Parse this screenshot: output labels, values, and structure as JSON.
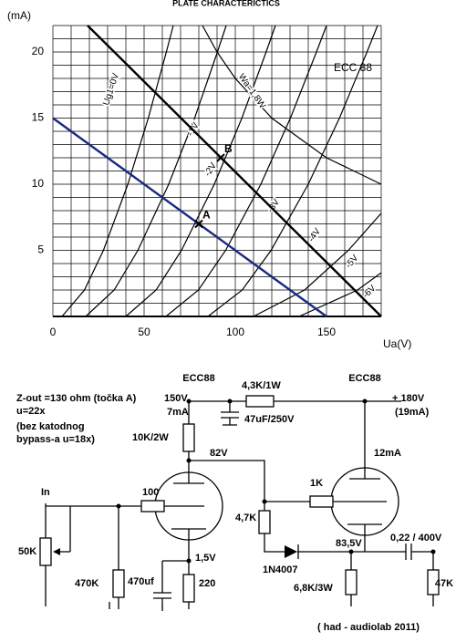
{
  "chart_data": {
    "type": "line",
    "title": "PLATE CHARACTERICTICS",
    "ylabel": "(mA)",
    "xlabel": "Ua(V)",
    "xlim": [
      0,
      180
    ],
    "ylim": [
      0,
      22
    ],
    "xticks": [
      0,
      50,
      100,
      150
    ],
    "yticks": [
      5,
      10,
      15,
      20
    ],
    "xgrid": [
      0,
      10,
      20,
      30,
      40,
      50,
      60,
      70,
      80,
      90,
      100,
      110,
      120,
      130,
      140,
      150,
      160,
      170,
      180
    ],
    "ygrid": [
      0,
      1,
      2,
      3,
      4,
      5,
      6,
      7,
      8,
      9,
      10,
      11,
      12,
      13,
      14,
      15,
      16,
      17,
      18,
      19,
      20,
      21,
      22
    ],
    "grid": true,
    "series": [
      {
        "name": "Ug1=0V",
        "color": "#000000",
        "x": [
          5,
          17.3,
          27.7,
          41.1,
          52.3,
          62.2,
          66
        ],
        "values": [
          0,
          2,
          5,
          10,
          15,
          20,
          22
        ]
      },
      {
        "name": "-1V",
        "color": "#000000",
        "x": [
          18,
          33.6,
          46.6,
          63.5,
          77.7,
          90.2,
          95
        ],
        "values": [
          0,
          2,
          5,
          10,
          15,
          20,
          22
        ]
      },
      {
        "name": "-2V",
        "color": "#000000",
        "x": [
          40,
          56.6,
          70.5,
          88.5,
          103.6,
          116.9,
          122
        ],
        "values": [
          0,
          2,
          5,
          10,
          15,
          20,
          22
        ]
      },
      {
        "name": "-3V",
        "color": "#000000",
        "x": [
          62,
          79.8,
          94.7,
          114,
          130.2,
          144.5,
          150
        ],
        "values": [
          0,
          2,
          5,
          10,
          15,
          20,
          22
        ]
      },
      {
        "name": "-4V",
        "color": "#000000",
        "x": [
          85,
          103.8,
          119.6,
          140,
          157.1,
          172.2,
          178
        ],
        "values": [
          0,
          2,
          5,
          10,
          15,
          20,
          22
        ]
      },
      {
        "name": "-5V",
        "color": "#000000",
        "x": [
          110,
          138,
          162,
          180
        ],
        "values": [
          0,
          2,
          5,
          7.8
        ]
      },
      {
        "name": "-6V",
        "color": "#000000",
        "x": [
          135,
          167,
          180
        ],
        "values": [
          0,
          2,
          3.3
        ]
      },
      {
        "name": "Wa=1,8W",
        "color": "#000000",
        "x": [
          82,
          90,
          100,
          120,
          150,
          180
        ],
        "values": [
          22,
          20,
          18,
          15,
          12,
          10
        ]
      }
    ],
    "load_lines": [
      {
        "color": "#000000",
        "x": [
          19,
          180
        ],
        "values": [
          22,
          0
        ]
      },
      {
        "color": "#1a2a80",
        "x": [
          0,
          150
        ],
        "values": [
          15,
          0
        ]
      }
    ],
    "points": [
      {
        "label": "A",
        "x": 80,
        "y": 7
      },
      {
        "label": "B",
        "x": 92,
        "y": 12
      }
    ],
    "annotation": "ECC 88"
  },
  "schematic": {
    "notes": [
      "Z-out =130 ohm (točka A)",
      "u=22x",
      "(bez katodnog",
      "bypass-a u=18x)"
    ],
    "tube_left": "ECC88",
    "tube_right": "ECC88",
    "v_plate_supply": "150V",
    "i_left": "7mA",
    "r_supply": "4,3K/1W",
    "supply": "+ 180V",
    "i_total": "(19mA)",
    "c_supply": "47uF/250V",
    "r_plate": "10K/2W",
    "v_plate": "82V",
    "i_right": "12mA",
    "input": "In",
    "r_grid": "100",
    "r_grid2": "1K",
    "r_bias": "4,7K",
    "v_cathode": "1,5V",
    "pot": "50K",
    "r_in": "470K",
    "c_cathode": "470uf",
    "r_cathode": "220",
    "diode": "1N4007",
    "v_out_cathode": "83,5V",
    "c_out": "0,22 / 400V",
    "r_load": "6,8K/3W",
    "r_out": "47K",
    "credit": "( had - audiolab 2011)"
  }
}
